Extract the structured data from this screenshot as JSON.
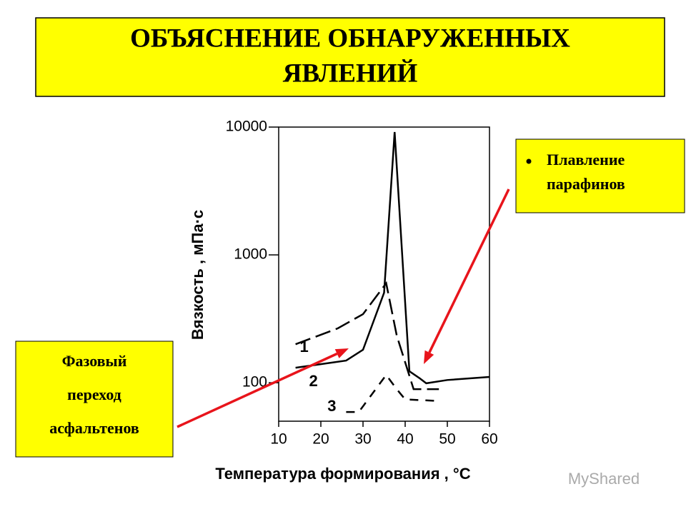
{
  "chart_data": {
    "type": "line",
    "title": [
      "ОБЪЯСНЕНИЕ ОБНАРУЖЕННЫХ",
      "ЯВЛЕНИЙ"
    ],
    "x_label": "Температура формирования , °C",
    "y_label": "Вязкость , мПа·с",
    "yscale": "log",
    "xlim": [
      10,
      60
    ],
    "xticks": [
      10,
      20,
      30,
      40,
      50,
      60
    ],
    "ylim": [
      50,
      10000
    ],
    "yticks": [
      100,
      1000,
      10000
    ],
    "series": [
      {
        "name": "1",
        "color": "#000000",
        "dash": "long",
        "x": [
          14,
          24,
          30,
          35.5,
          38,
          42,
          48
        ],
        "values": [
          200,
          266,
          344,
          600,
          234,
          89,
          89
        ]
      },
      {
        "name": "2",
        "color": "#000000",
        "dash": "solid",
        "x": [
          14,
          26,
          30,
          35,
          37.5,
          41,
          43.5,
          45,
          50,
          60
        ],
        "values": [
          131,
          149,
          181,
          506,
          9140,
          123,
          108,
          99,
          105,
          111
        ]
      },
      {
        "name": "3",
        "color": "#000000",
        "dash": "short",
        "x": [
          26,
          29,
          35.5,
          38,
          40,
          48
        ],
        "values": [
          59,
          59,
          115,
          89,
          74,
          72
        ]
      }
    ],
    "annotations": [
      {
        "lines": [
          "Плавление",
          "парафинов"
        ],
        "color": "#ffff00",
        "arrow_color": "#e8141b"
      },
      {
        "lines": [
          "Фазовый",
          "переход",
          "асфальтенов"
        ],
        "color": "#ffff00",
        "arrow_color": "#e8141b"
      }
    ],
    "watermark": "MyShared"
  }
}
